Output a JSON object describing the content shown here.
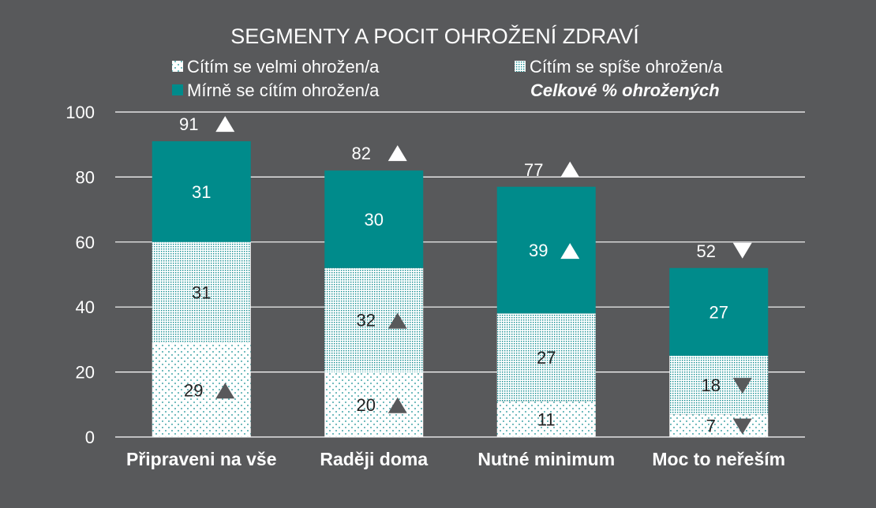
{
  "chart_data": {
    "type": "bar",
    "stacked": true,
    "title": "SEGMENTY A POCIT OHROŽENÍ ZDRAVÍ",
    "categories": [
      "Připraveni na vše",
      "Raději doma",
      "Nutné minimum",
      "Moc to neřeším"
    ],
    "series": [
      {
        "name": "Cítím se velmi ohrožen/a",
        "values": [
          29,
          20,
          11,
          7
        ],
        "trend": [
          "up",
          "up",
          "none",
          "down"
        ]
      },
      {
        "name": "Cítím se spíše ohrožen/a",
        "values": [
          31,
          32,
          27,
          18
        ],
        "trend": [
          "none",
          "up",
          "none",
          "down"
        ]
      },
      {
        "name": "Mírně se cítím ohrožen/a",
        "values": [
          31,
          30,
          39,
          27
        ],
        "trend": [
          "none",
          "none",
          "up",
          "none"
        ]
      }
    ],
    "totals": {
      "name": "Celkové % ohrožených",
      "values": [
        91,
        82,
        77,
        52
      ],
      "trend": [
        "up",
        "up",
        "up",
        "down"
      ]
    },
    "ylim": [
      0,
      100
    ],
    "yticks": [
      0,
      20,
      40,
      60,
      80,
      100
    ],
    "xlabel": "",
    "ylabel": "",
    "grid": true,
    "legend_position": "top",
    "colors": {
      "background": "#58595b",
      "velmi": "#ffffff",
      "velmi_dots": "#0f8c8f",
      "spise": "#ffffff",
      "spise_dots": "#0f8c8f",
      "mirne": "#008b8b",
      "arrow_dark": "#58595b",
      "arrow_light": "#ffffff"
    }
  }
}
